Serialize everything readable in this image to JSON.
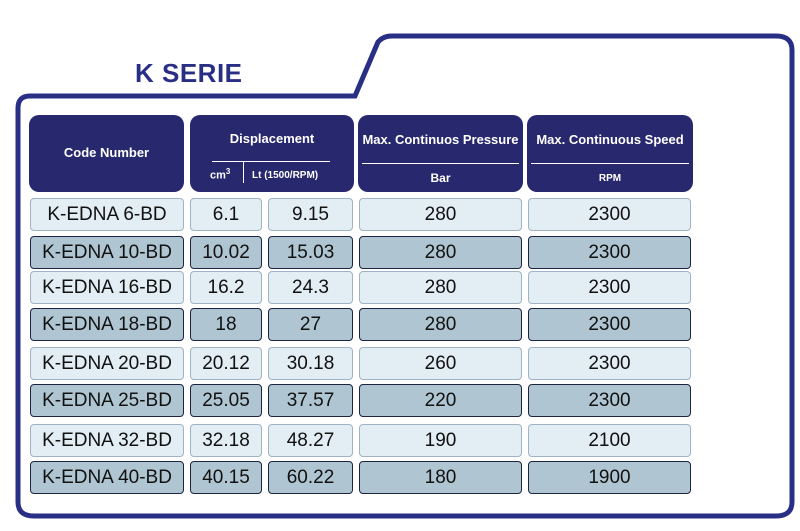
{
  "title": "K SERIE",
  "headers": {
    "code": "Code Number",
    "displacement": "Displacement",
    "disp_unit_cm_base": "cm",
    "disp_unit_cm_exp": "3",
    "disp_unit_lt": "Lt (1500/RPM)",
    "pressure": "Max. Continuos Pressure",
    "pressure_unit": "Bar",
    "speed": "Max. Continuous Speed",
    "speed_unit": "RPM"
  },
  "rows": [
    {
      "code": "K-EDNA 6-BD",
      "cm3": "6.1",
      "lt": "9.15",
      "pressure": "280",
      "speed": "2300"
    },
    {
      "code": "K-EDNA 10-BD",
      "cm3": "10.02",
      "lt": "15.03",
      "pressure": "280",
      "speed": "2300"
    },
    {
      "code": "K-EDNA 16-BD",
      "cm3": "16.2",
      "lt": "24.3",
      "pressure": "280",
      "speed": "2300"
    },
    {
      "code": "K-EDNA 18-BD",
      "cm3": "18",
      "lt": "27",
      "pressure": "280",
      "speed": "2300"
    },
    {
      "code": "K-EDNA 20-BD",
      "cm3": "20.12",
      "lt": "30.18",
      "pressure": "260",
      "speed": "2300"
    },
    {
      "code": "K-EDNA 25-BD",
      "cm3": "25.05",
      "lt": "37.57",
      "pressure": "220",
      "speed": "2300"
    },
    {
      "code": "K-EDNA 32-BD",
      "cm3": "32.18",
      "lt": "48.27",
      "pressure": "190",
      "speed": "2100"
    },
    {
      "code": "K-EDNA 40-BD",
      "cm3": "40.15",
      "lt": "60.22",
      "pressure": "180",
      "speed": "1900"
    }
  ],
  "colors": {
    "frame": "#2a2f86",
    "header": "#28286e",
    "row_light": "#e3edf4",
    "row_dark": "#afc6d2"
  }
}
